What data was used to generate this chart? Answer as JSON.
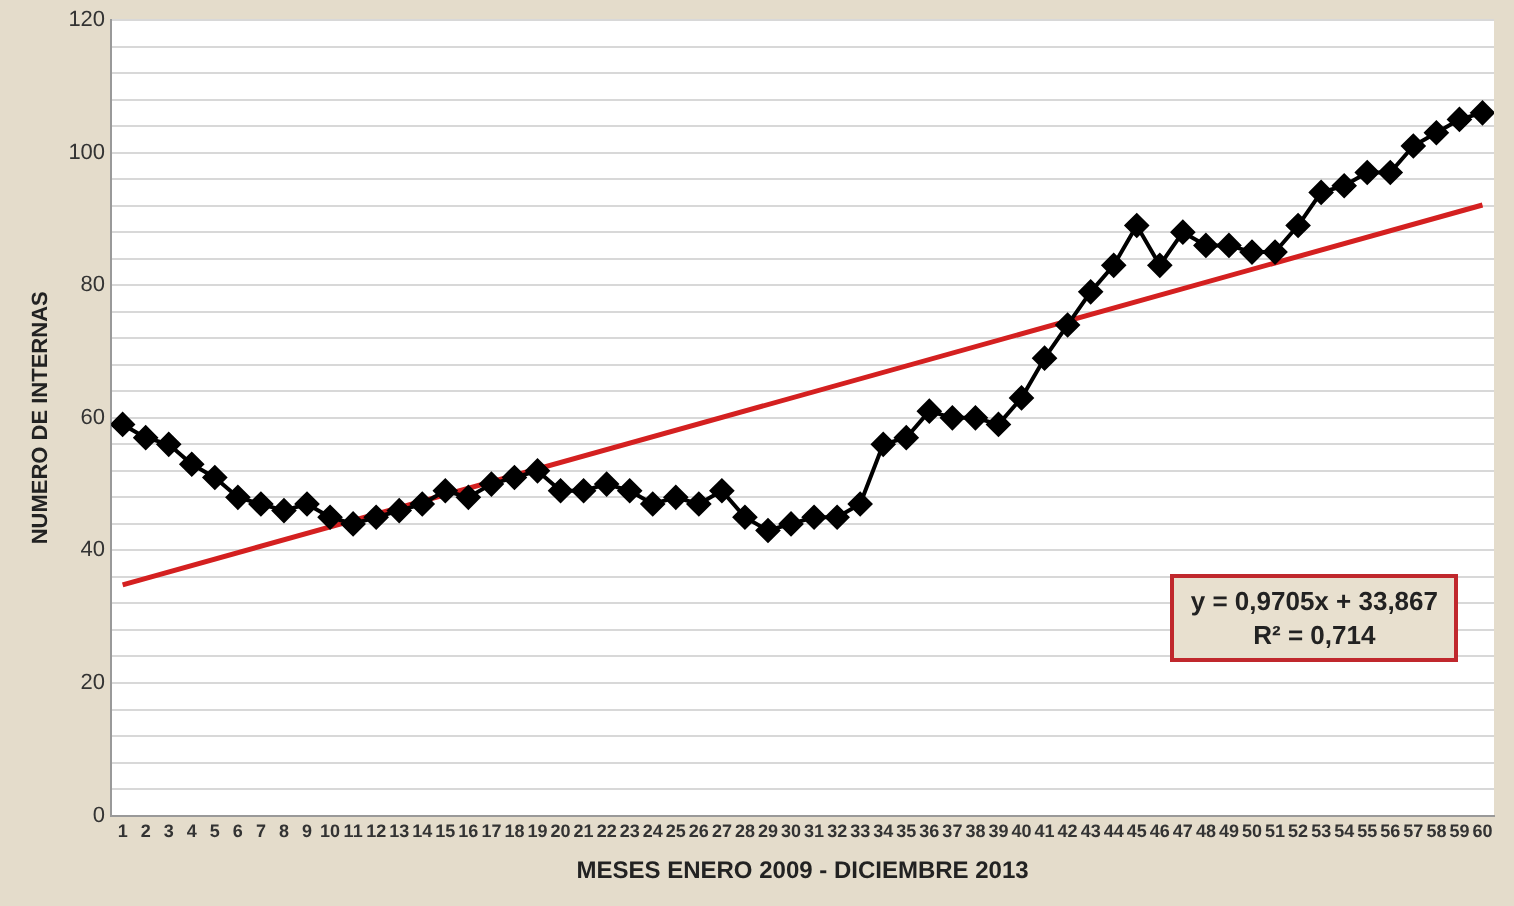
{
  "chart_data": {
    "type": "line",
    "xlabel": "MESES ENERO 2009 - DICIEMBRE 2013",
    "ylabel": "NUMERO DE INTERNAS",
    "x": [
      1,
      2,
      3,
      4,
      5,
      6,
      7,
      8,
      9,
      10,
      11,
      12,
      13,
      14,
      15,
      16,
      17,
      18,
      19,
      20,
      21,
      22,
      23,
      24,
      25,
      26,
      27,
      28,
      29,
      30,
      31,
      32,
      33,
      34,
      35,
      36,
      37,
      38,
      39,
      40,
      41,
      42,
      43,
      44,
      45,
      46,
      47,
      48,
      49,
      50,
      51,
      52,
      53,
      54,
      55,
      56,
      57,
      58,
      59,
      60
    ],
    "series": [
      {
        "color": "#000000",
        "marker": "diamond",
        "values": [
          59,
          57,
          56,
          53,
          51,
          48,
          47,
          46,
          47,
          45,
          44,
          45,
          46,
          47,
          49,
          48,
          50,
          51,
          52,
          49,
          49,
          50,
          49,
          47,
          48,
          47,
          49,
          45,
          43,
          44,
          45,
          45,
          47,
          56,
          57,
          61,
          60,
          60,
          59,
          63,
          69,
          74,
          79,
          83,
          89,
          83,
          88,
          86,
          86,
          85,
          85,
          89,
          94,
          95,
          97,
          97,
          101,
          103,
          105,
          106
        ]
      },
      {
        "color": "#d42020",
        "marker": "none",
        "x": [
          1,
          60
        ],
        "values": [
          34.8,
          92.1
        ]
      }
    ],
    "xlim": [
      0.5,
      60.5
    ],
    "xticks": [
      1,
      2,
      3,
      4,
      5,
      6,
      7,
      8,
      9,
      10,
      11,
      12,
      13,
      14,
      15,
      16,
      17,
      18,
      19,
      20,
      21,
      22,
      23,
      24,
      25,
      26,
      27,
      28,
      29,
      30,
      31,
      32,
      33,
      34,
      35,
      36,
      37,
      38,
      39,
      40,
      41,
      42,
      43,
      44,
      45,
      46,
      47,
      48,
      49,
      50,
      51,
      52,
      53,
      54,
      55,
      56,
      57,
      58,
      59,
      60
    ],
    "ylim": [
      0,
      120
    ],
    "yticks": [
      0,
      {
        "value": 4,
        "label": null
      },
      {
        "value": 8,
        "label": null
      },
      {
        "value": 12,
        "label": null
      },
      {
        "value": 16,
        "label": null
      },
      20,
      {
        "value": 24,
        "label": null
      },
      {
        "value": 28,
        "label": null
      },
      {
        "value": 32,
        "label": null
      },
      {
        "value": 36,
        "label": null
      },
      40,
      {
        "value": 44,
        "label": null
      },
      {
        "value": 48,
        "label": null
      },
      {
        "value": 52,
        "label": null
      },
      {
        "value": 56,
        "label": null
      },
      60,
      {
        "value": 64,
        "label": null
      },
      {
        "value": 68,
        "label": null
      },
      {
        "value": 72,
        "label": null
      },
      {
        "value": 76,
        "label": null
      },
      80,
      {
        "value": 84,
        "label": null
      },
      {
        "value": 88,
        "label": null
      },
      {
        "value": 92,
        "label": null
      },
      {
        "value": 96,
        "label": null
      },
      100,
      {
        "value": 104,
        "label": null
      },
      {
        "value": 108,
        "label": null
      },
      {
        "value": 112,
        "label": null
      },
      {
        "value": 116,
        "label": null
      },
      120
    ],
    "grid": "y",
    "legend": false,
    "annotations": [
      "y = 0,9705x + 33,867",
      "R² = 0,714"
    ]
  }
}
